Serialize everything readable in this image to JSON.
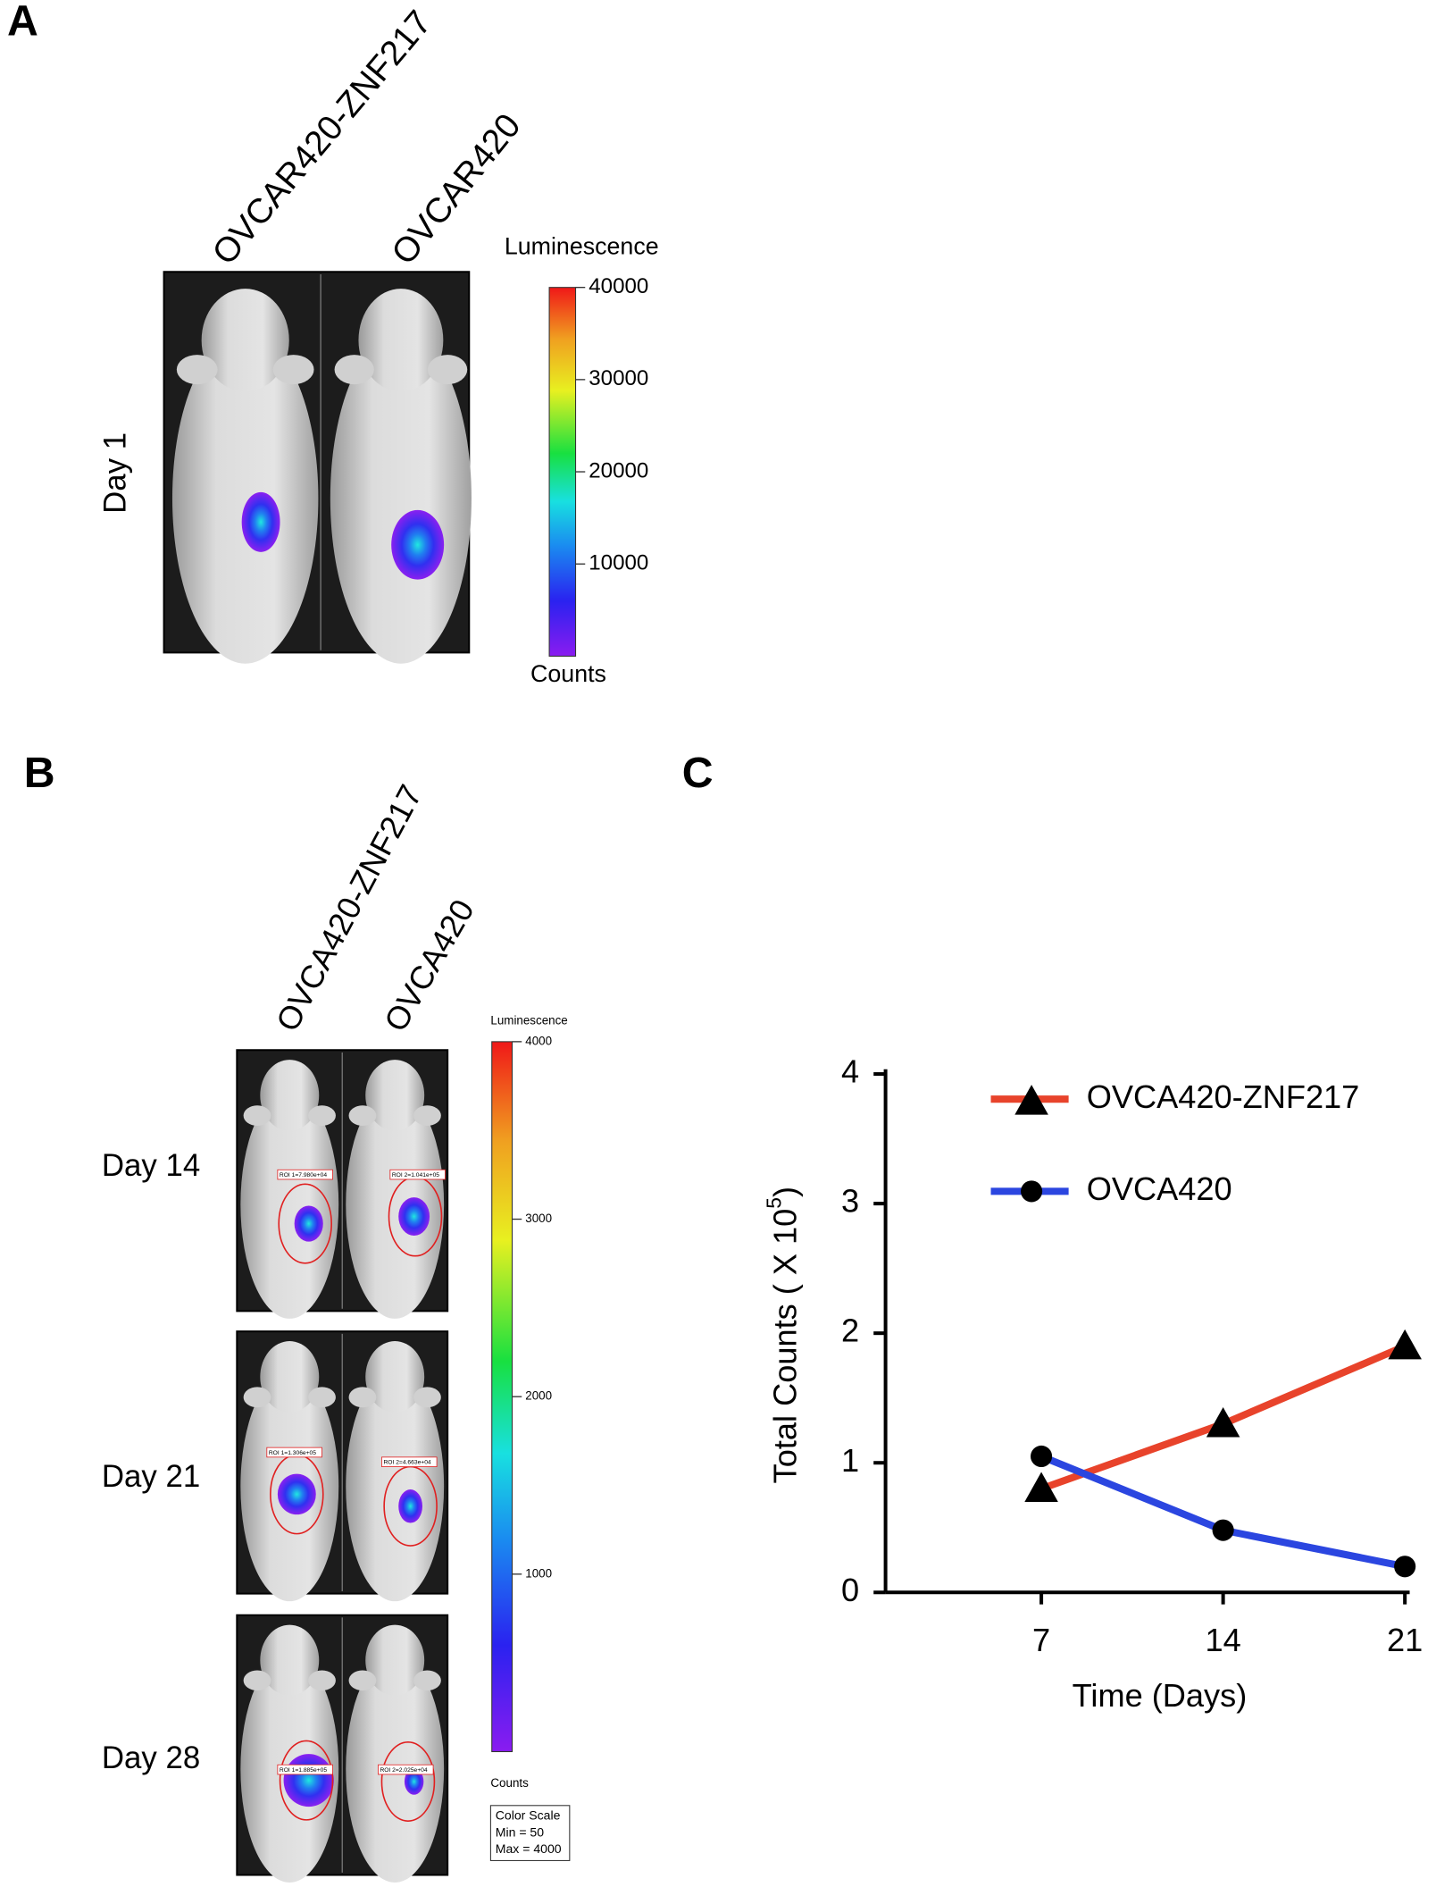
{
  "panel_a": {
    "label": "A",
    "columns": [
      "OVCAR420-ZNF217",
      "OVCAR420"
    ],
    "rows": [
      "Day 1"
    ],
    "colorbar": {
      "title": "Luminescence",
      "lim": [
        0,
        40000
      ],
      "ticks": [
        10000,
        20000,
        30000,
        40000
      ],
      "bottom_label": "Counts"
    }
  },
  "panel_b": {
    "label": "B",
    "columns": [
      "OVCA420-ZNF217",
      "OVCA420"
    ],
    "rows": [
      "Day 14",
      "Day 21",
      "Day 28"
    ],
    "roi_labels": [
      [
        "ROI 1=7.980e+04",
        "ROI 2=1.041e+05"
      ],
      [
        "ROI 1=1.306e+05",
        "ROI 2=4.663e+04"
      ],
      [
        "ROI 1=1.885e+05",
        "ROI 2=2.025e+04"
      ]
    ],
    "colorbar": {
      "title": "Luminescence",
      "lim": [
        0,
        4000
      ],
      "ticks": [
        1000,
        2000,
        3000,
        4000
      ],
      "bottom_label": "Counts",
      "scale_box": [
        "Color Scale",
        "Min = 50",
        "Max = 4000"
      ]
    }
  },
  "chart_data": {
    "type": "line",
    "panel_label": "C",
    "x_label": "Time (Days)",
    "y_label": {
      "text": "Total Counts ( X 10",
      "superscript": "5",
      "suffix": ")"
    },
    "x": [
      7,
      14,
      21
    ],
    "xlim": [
      1,
      21
    ],
    "xticks": [
      7,
      14,
      21
    ],
    "ylim": [
      0,
      4
    ],
    "yticks": [
      0,
      1,
      2,
      3,
      4
    ],
    "legend": "upper right",
    "series": [
      {
        "name": "OVCA420-ZNF217",
        "color": "#e8432b",
        "marker": "triangle",
        "values": [
          0.8,
          1.3,
          1.9
        ]
      },
      {
        "name": "OVCA420",
        "color": "#2b46e0",
        "marker": "circle",
        "values": [
          1.05,
          0.48,
          0.2
        ]
      }
    ]
  }
}
